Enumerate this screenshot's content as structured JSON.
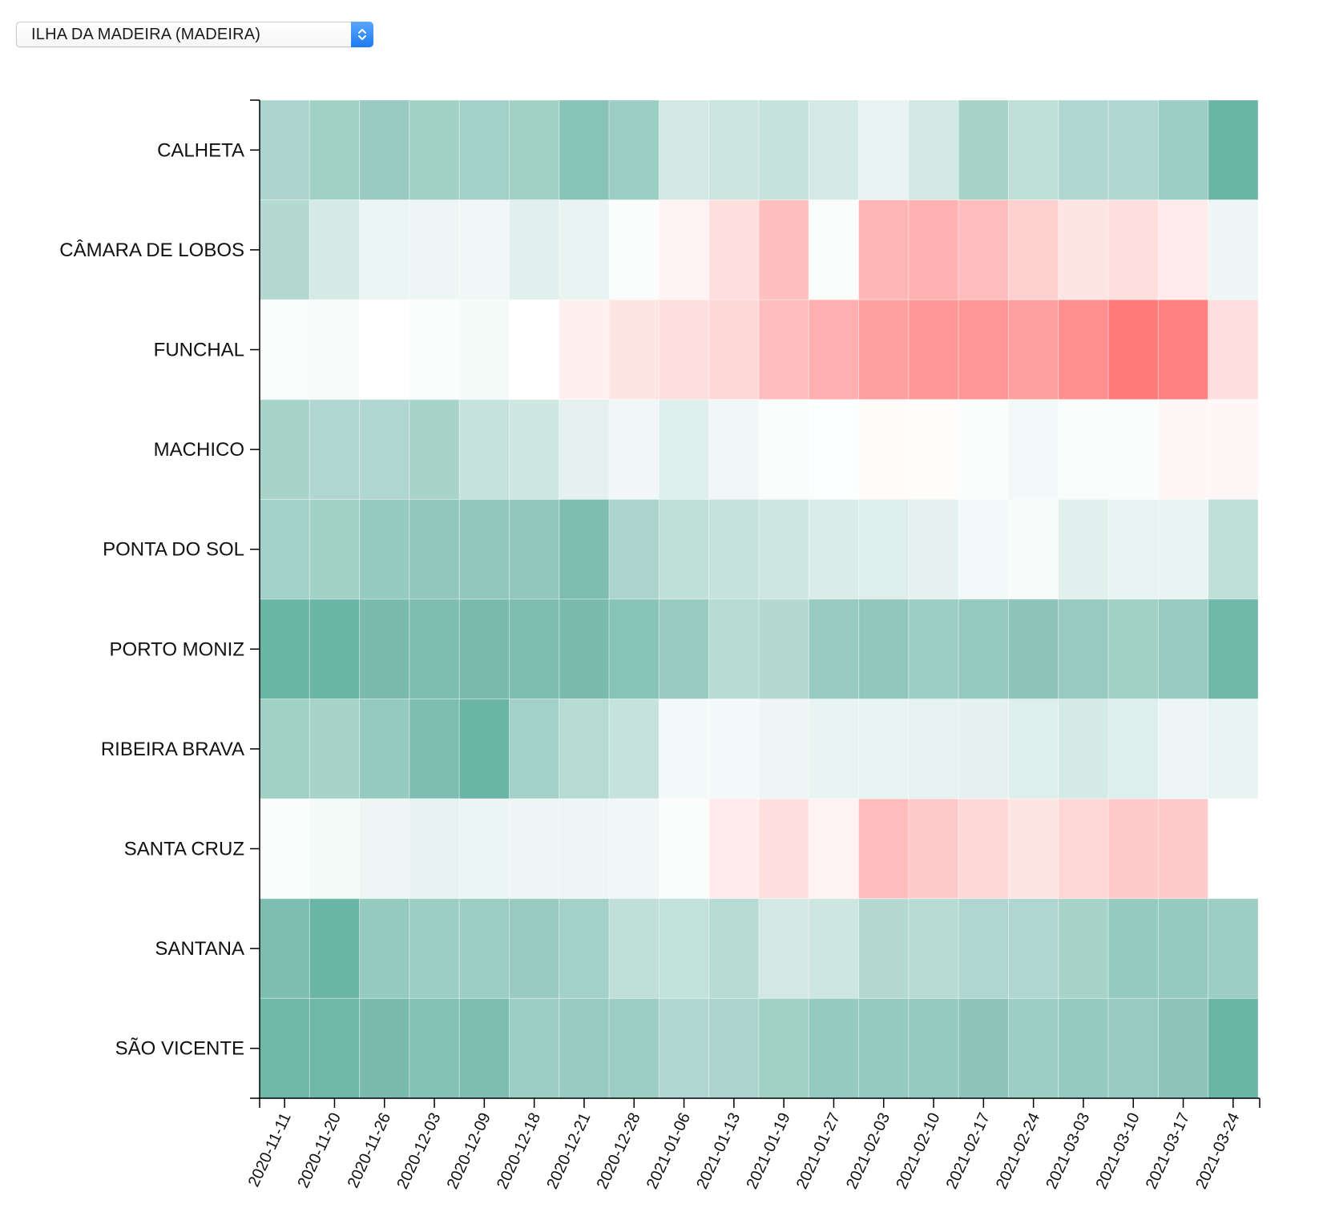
{
  "selector": {
    "value": "ILHA DA MADEIRA (MADEIRA)",
    "icon": "up-down-chevron-icon"
  },
  "colors": {
    "negative_max": "#ff7a7a",
    "positive_max": "#67b3a2",
    "neutral": "#ffffff"
  },
  "chart_data": {
    "type": "heatmap",
    "title": "",
    "xlabel": "",
    "ylabel": "",
    "x": [
      "2020-11-11",
      "2020-11-20",
      "2020-11-26",
      "2020-12-03",
      "2020-12-09",
      "2020-12-18",
      "2020-12-21",
      "2020-12-28",
      "2021-01-06",
      "2021-01-13",
      "2021-01-19",
      "2021-01-27",
      "2021-02-03",
      "2021-02-10",
      "2021-02-17",
      "2021-02-24",
      "2021-03-03",
      "2021-03-10",
      "2021-03-17",
      "2021-03-24"
    ],
    "y": [
      "CALHETA",
      "CÂMARA DE LOBOS",
      "FUNCHAL",
      "MACHICO",
      "PONTA DO SOL",
      "PORTO MONIZ",
      "RIBEIRA BRAVA",
      "SANTA CRUZ",
      "SANTANA",
      "SÃO VICENTE"
    ],
    "value_range": [
      -1,
      1
    ],
    "values": [
      [
        0.55,
        0.62,
        0.68,
        0.62,
        0.6,
        0.62,
        0.78,
        0.65,
        0.3,
        0.35,
        0.38,
        0.28,
        0.15,
        0.3,
        0.58,
        0.42,
        0.52,
        0.52,
        0.65,
        0.98
      ],
      [
        0.5,
        0.28,
        0.13,
        0.12,
        0.1,
        0.2,
        0.15,
        0.03,
        -0.1,
        -0.25,
        -0.48,
        0.04,
        -0.55,
        -0.58,
        -0.5,
        -0.35,
        -0.2,
        -0.25,
        -0.15,
        0.12
      ],
      [
        0.04,
        0.05,
        0.0,
        0.03,
        0.07,
        0.0,
        -0.12,
        -0.2,
        -0.25,
        -0.3,
        -0.5,
        -0.6,
        -0.72,
        -0.78,
        -0.8,
        -0.72,
        -0.85,
        -1.0,
        -0.95,
        -0.25
      ],
      [
        0.58,
        0.52,
        0.52,
        0.58,
        0.38,
        0.32,
        0.18,
        0.1,
        0.22,
        0.1,
        0.04,
        0.01,
        -0.03,
        -0.02,
        0.03,
        0.08,
        0.04,
        0.03,
        -0.06,
        -0.06
      ],
      [
        0.6,
        0.62,
        0.7,
        0.72,
        0.72,
        0.72,
        0.85,
        0.55,
        0.42,
        0.38,
        0.33,
        0.25,
        0.22,
        0.18,
        0.08,
        0.05,
        0.2,
        0.15,
        0.15,
        0.42
      ],
      [
        0.98,
        0.98,
        0.88,
        0.85,
        0.88,
        0.85,
        0.88,
        0.78,
        0.68,
        0.48,
        0.5,
        0.68,
        0.72,
        0.65,
        0.7,
        0.75,
        0.68,
        0.62,
        0.68,
        0.95
      ],
      [
        0.62,
        0.58,
        0.7,
        0.85,
        0.98,
        0.6,
        0.48,
        0.38,
        0.08,
        0.08,
        0.12,
        0.15,
        0.15,
        0.17,
        0.18,
        0.22,
        0.28,
        0.22,
        0.12,
        0.15
      ],
      [
        0.04,
        0.07,
        0.12,
        0.17,
        0.13,
        0.12,
        0.12,
        0.1,
        0.03,
        -0.15,
        -0.25,
        -0.1,
        -0.5,
        -0.4,
        -0.3,
        -0.2,
        -0.3,
        -0.4,
        -0.4,
        0.0
      ],
      [
        0.85,
        0.98,
        0.7,
        0.65,
        0.66,
        0.68,
        0.6,
        0.42,
        0.4,
        0.48,
        0.3,
        0.33,
        0.5,
        0.48,
        0.52,
        0.52,
        0.58,
        0.7,
        0.7,
        0.65
      ],
      [
        0.95,
        0.95,
        0.88,
        0.82,
        0.85,
        0.65,
        0.68,
        0.65,
        0.52,
        0.55,
        0.62,
        0.7,
        0.7,
        0.7,
        0.75,
        0.65,
        0.7,
        0.68,
        0.75,
        0.98
      ]
    ]
  }
}
